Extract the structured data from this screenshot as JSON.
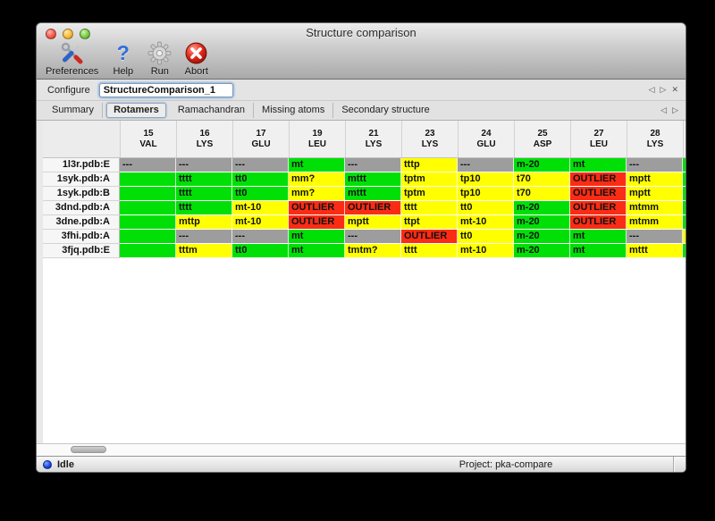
{
  "window": {
    "title": "Structure comparison"
  },
  "toolbar": {
    "items": [
      {
        "label": "Preferences",
        "icon": "tools-icon"
      },
      {
        "label": "Help",
        "icon": "help-icon"
      },
      {
        "label": "Run",
        "icon": "gear-icon"
      },
      {
        "label": "Abort",
        "icon": "abort-icon"
      }
    ]
  },
  "configure": {
    "label": "Configure",
    "value": "StructureComparison_1",
    "nav": [
      {
        "name": "prev-arrow-icon",
        "glyph": "◁"
      },
      {
        "name": "next-arrow-icon",
        "glyph": "▷"
      },
      {
        "name": "close-icon",
        "glyph": "✕"
      }
    ]
  },
  "tabs": {
    "active": "Rotamers",
    "items": [
      "Summary",
      "Rotamers",
      "Ramachandran",
      "Missing atoms",
      "Secondary structure"
    ],
    "nav": [
      {
        "name": "prev-arrow-icon",
        "glyph": "◁"
      },
      {
        "name": "next-arrow-icon",
        "glyph": "▷"
      }
    ]
  },
  "colors": {
    "green": "#00e007",
    "yellow": "#ffff00",
    "red": "#fb2c15",
    "gray": "#9d9d9d"
  },
  "table": {
    "columns": [
      {
        "num": "15",
        "res": "VAL"
      },
      {
        "num": "16",
        "res": "LYS"
      },
      {
        "num": "17",
        "res": "GLU"
      },
      {
        "num": "19",
        "res": "LEU"
      },
      {
        "num": "21",
        "res": "LYS"
      },
      {
        "num": "23",
        "res": "LYS"
      },
      {
        "num": "24",
        "res": "GLU"
      },
      {
        "num": "25",
        "res": "ASP"
      },
      {
        "num": "27",
        "res": "LEU"
      },
      {
        "num": "28",
        "res": "LYS"
      }
    ],
    "partial_column_colors": [
      "green",
      "green",
      "green",
      "green",
      "green",
      "yellow",
      "green"
    ],
    "rows": [
      {
        "label": "1l3r.pdb:E",
        "cells": [
          [
            "---",
            "gray"
          ],
          [
            "---",
            "gray"
          ],
          [
            "---",
            "gray"
          ],
          [
            "mt",
            "green"
          ],
          [
            "---",
            "gray"
          ],
          [
            "tttp",
            "yellow"
          ],
          [
            "---",
            "gray"
          ],
          [
            "m-20",
            "green"
          ],
          [
            "mt",
            "green"
          ],
          [
            "---",
            "gray"
          ]
        ]
      },
      {
        "label": "1syk.pdb:A",
        "cells": [
          [
            "",
            "green"
          ],
          [
            "tttt",
            "green"
          ],
          [
            "tt0",
            "green"
          ],
          [
            "mm?",
            "yellow"
          ],
          [
            "mttt",
            "green"
          ],
          [
            "tptm",
            "yellow"
          ],
          [
            "tp10",
            "yellow"
          ],
          [
            "t70",
            "yellow"
          ],
          [
            "OUTLIER",
            "red"
          ],
          [
            "mptt",
            "yellow"
          ]
        ]
      },
      {
        "label": "1syk.pdb:B",
        "cells": [
          [
            "",
            "green"
          ],
          [
            "tttt",
            "green"
          ],
          [
            "tt0",
            "green"
          ],
          [
            "mm?",
            "yellow"
          ],
          [
            "mttt",
            "green"
          ],
          [
            "tptm",
            "yellow"
          ],
          [
            "tp10",
            "yellow"
          ],
          [
            "t70",
            "yellow"
          ],
          [
            "OUTLIER",
            "red"
          ],
          [
            "mptt",
            "yellow"
          ]
        ]
      },
      {
        "label": "3dnd.pdb:A",
        "cells": [
          [
            "",
            "green"
          ],
          [
            "tttt",
            "green"
          ],
          [
            "mt-10",
            "yellow"
          ],
          [
            "OUTLIER",
            "red"
          ],
          [
            "OUTLIER",
            "red"
          ],
          [
            "tttt",
            "yellow"
          ],
          [
            "tt0",
            "yellow"
          ],
          [
            "m-20",
            "green"
          ],
          [
            "OUTLIER",
            "red"
          ],
          [
            "mtmm",
            "yellow"
          ]
        ]
      },
      {
        "label": "3dne.pdb:A",
        "cells": [
          [
            "",
            "green"
          ],
          [
            "mttp",
            "yellow"
          ],
          [
            "mt-10",
            "yellow"
          ],
          [
            "OUTLIER",
            "red"
          ],
          [
            "mptt",
            "yellow"
          ],
          [
            "ttpt",
            "yellow"
          ],
          [
            "mt-10",
            "yellow"
          ],
          [
            "m-20",
            "green"
          ],
          [
            "OUTLIER",
            "red"
          ],
          [
            "mtmm",
            "yellow"
          ]
        ]
      },
      {
        "label": "3fhi.pdb:A",
        "cells": [
          [
            "",
            "green"
          ],
          [
            "---",
            "gray"
          ],
          [
            "---",
            "gray"
          ],
          [
            "mt",
            "green"
          ],
          [
            "---",
            "gray"
          ],
          [
            "OUTLIER",
            "red"
          ],
          [
            "tt0",
            "yellow"
          ],
          [
            "m-20",
            "green"
          ],
          [
            "mt",
            "green"
          ],
          [
            "---",
            "gray"
          ]
        ]
      },
      {
        "label": "3fjq.pdb:E",
        "cells": [
          [
            "",
            "green"
          ],
          [
            "tttm",
            "yellow"
          ],
          [
            "tt0",
            "green"
          ],
          [
            "mt",
            "green"
          ],
          [
            "tmtm?",
            "yellow"
          ],
          [
            "tttt",
            "yellow"
          ],
          [
            "mt-10",
            "yellow"
          ],
          [
            "m-20",
            "green"
          ],
          [
            "mt",
            "green"
          ],
          [
            "mttt",
            "yellow"
          ]
        ]
      }
    ]
  },
  "status": {
    "state": "Idle",
    "project": "Project: pka-compare"
  }
}
